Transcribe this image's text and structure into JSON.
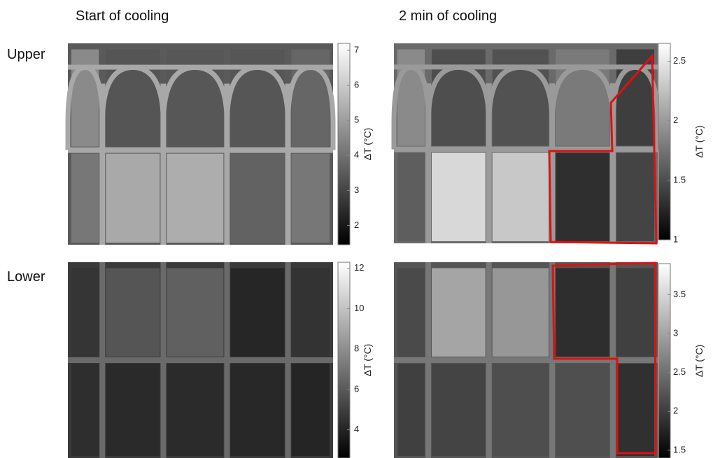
{
  "column_titles": [
    "Start of cooling",
    "2 min of cooling"
  ],
  "row_labels": [
    "Upper",
    "Lower"
  ],
  "panels": [
    {
      "colorbar": {
        "label": "ΔT (°C)",
        "lim": [
          1.45,
          7.2
        ],
        "ticks": [
          2,
          3,
          4,
          5,
          6,
          7
        ]
      }
    },
    {
      "colorbar": {
        "label": "ΔT (°C)",
        "lim": [
          1,
          2.65
        ],
        "ticks": [
          1,
          1.5,
          2,
          2.5
        ]
      }
    },
    {
      "colorbar": {
        "label": "ΔT (°C)",
        "lim": [
          2.6,
          12.3
        ],
        "ticks": [
          4,
          6,
          8,
          10,
          12
        ]
      }
    },
    {
      "colorbar": {
        "label": "ΔT (°C)",
        "lim": [
          1.4,
          3.9
        ],
        "ticks": [
          1.5,
          2,
          2.5,
          3,
          3.5
        ]
      }
    }
  ]
}
